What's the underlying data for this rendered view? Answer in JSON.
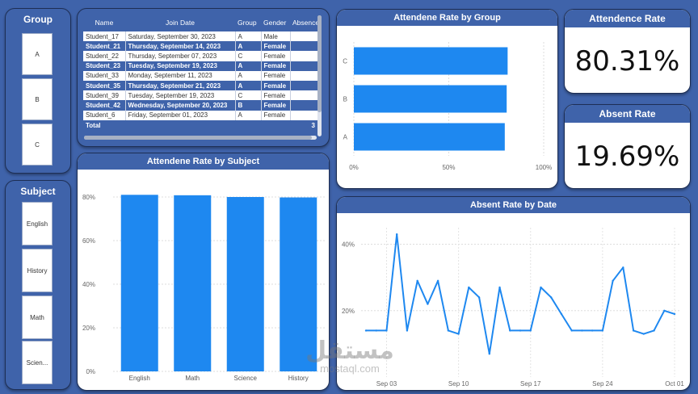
{
  "group_slicer": {
    "title": "Group",
    "items": [
      "A",
      "B",
      "C"
    ]
  },
  "subject_slicer": {
    "title": "Subject",
    "items": [
      "English",
      "History",
      "Math",
      "Scien..."
    ]
  },
  "table": {
    "columns": [
      "Name",
      "Join Date",
      "Group",
      "Gender",
      "Absence"
    ],
    "rows": [
      [
        "Student_17",
        "Saturday, September 30, 2023",
        "A",
        "Male"
      ],
      [
        "Student_21",
        "Thursday, September 14, 2023",
        "A",
        "Female"
      ],
      [
        "Student_22",
        "Thursday, September 07, 2023",
        "C",
        "Female"
      ],
      [
        "Student_23",
        "Tuesday, September 19, 2023",
        "A",
        "Female"
      ],
      [
        "Student_33",
        "Monday, September 11, 2023",
        "A",
        "Female"
      ],
      [
        "Student_35",
        "Thursday, September 21, 2023",
        "A",
        "Female"
      ],
      [
        "Student_39",
        "Tuesday, September 19, 2023",
        "C",
        "Female"
      ],
      [
        "Student_42",
        "Wednesday, September 20, 2023",
        "B",
        "Female"
      ],
      [
        "Student_6",
        "Friday, September 01, 2023",
        "A",
        "Female"
      ]
    ],
    "total_label": "Total",
    "total_value": "3"
  },
  "kpis": {
    "attendance": {
      "title": "Attendence Rate",
      "value": "80.31%"
    },
    "absent": {
      "title": "Absent Rate",
      "value": "19.69%"
    }
  },
  "colors": {
    "bar": "#1e88f0",
    "header": "#3f63aa",
    "background": "#3f63aa"
  },
  "watermark": {
    "arabic": "مستقل",
    "latin": "mostaql.com"
  },
  "chart_data": [
    {
      "type": "bar",
      "orientation": "horizontal",
      "title": "Attendene Rate by Group",
      "categories": [
        "C",
        "B",
        "A"
      ],
      "values": [
        81,
        80.5,
        79.5
      ],
      "xlim": [
        0,
        100
      ],
      "x_ticks": [
        "0%",
        "50%",
        "100%"
      ]
    },
    {
      "type": "bar",
      "title": "Attendene Rate by Subject",
      "categories": [
        "English",
        "Math",
        "Science",
        "History"
      ],
      "values": [
        81,
        80.8,
        80,
        79.8
      ],
      "ylim": [
        0,
        80
      ],
      "y_ticks": [
        "0%",
        "20%",
        "40%",
        "60%",
        "80%"
      ]
    },
    {
      "type": "line",
      "title": "Absent Rate by Date",
      "x": [
        "2023-09-01",
        "2023-09-02",
        "2023-09-03",
        "2023-09-04",
        "2023-09-05",
        "2023-09-06",
        "2023-09-07",
        "2023-09-08",
        "2023-09-09",
        "2023-09-10",
        "2023-09-11",
        "2023-09-12",
        "2023-09-13",
        "2023-09-14",
        "2023-09-15",
        "2023-09-16",
        "2023-09-17",
        "2023-09-18",
        "2023-09-19",
        "2023-09-20",
        "2023-09-21",
        "2023-09-22",
        "2023-09-23",
        "2023-09-24",
        "2023-09-25",
        "2023-09-26",
        "2023-09-27",
        "2023-09-28",
        "2023-09-29",
        "2023-09-30",
        "2023-10-01"
      ],
      "values": [
        14,
        14,
        14,
        43,
        14,
        29,
        22,
        29,
        14,
        13,
        27,
        24,
        7,
        27,
        14,
        14,
        14,
        27,
        24,
        19,
        14,
        14,
        14,
        14,
        29,
        33,
        14,
        13,
        14,
        20,
        19
      ],
      "ylim": [
        0,
        45
      ],
      "y_ticks": [
        "20%",
        "40%"
      ],
      "x_ticks": [
        "Sep 03",
        "Sep 10",
        "Sep 17",
        "Sep 24",
        "Oct 01"
      ]
    }
  ]
}
